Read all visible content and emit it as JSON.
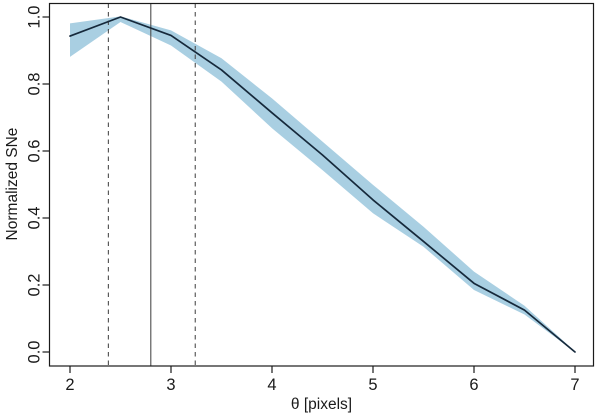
{
  "chart_data": {
    "type": "line",
    "title": "",
    "xlabel": "θ [pixels]",
    "ylabel": "Normalized SNe",
    "x": [
      2.0,
      2.5,
      3.0,
      3.5,
      4.0,
      4.5,
      5.0,
      5.5,
      6.0,
      6.5,
      7.0
    ],
    "series": [
      {
        "name": "normalized-snr-curve",
        "kind": "line",
        "color": "#16293b",
        "values": [
          0.943,
          1.0,
          0.945,
          0.842,
          0.714,
          0.588,
          0.454,
          0.33,
          0.205,
          0.125,
          0.0
        ]
      },
      {
        "name": "uncertainty-band",
        "kind": "band",
        "fill": "#a9cfe2",
        "upper": [
          0.981,
          1.002,
          0.96,
          0.877,
          0.757,
          0.628,
          0.499,
          0.374,
          0.24,
          0.138,
          0.002
        ],
        "lower": [
          0.881,
          0.985,
          0.915,
          0.807,
          0.668,
          0.543,
          0.414,
          0.314,
          0.185,
          0.112,
          0.0
        ]
      }
    ],
    "vlines": [
      {
        "x": 2.38,
        "style": "dashed",
        "color": "#4d4d4d"
      },
      {
        "x": 2.8,
        "style": "solid",
        "color": "#4d4d4d"
      },
      {
        "x": 3.24,
        "style": "dashed",
        "color": "#4d4d4d"
      }
    ],
    "x_ticks": {
      "values": [
        2,
        3,
        4,
        5,
        6,
        7
      ],
      "labels": [
        "2",
        "3",
        "4",
        "5",
        "6",
        "7"
      ]
    },
    "y_ticks": {
      "values": [
        0.0,
        0.2,
        0.4,
        0.6,
        0.8,
        1.0
      ],
      "labels": [
        "0.0",
        "0.2",
        "0.4",
        "0.6",
        "0.8",
        "1.0"
      ]
    },
    "xlim": [
      2,
      7
    ],
    "ylim": [
      0,
      1
    ],
    "grid": false,
    "legend": null,
    "axis_color": "#1a1a1a",
    "text_color": "#1a1a1a",
    "background": "#ffffff"
  }
}
